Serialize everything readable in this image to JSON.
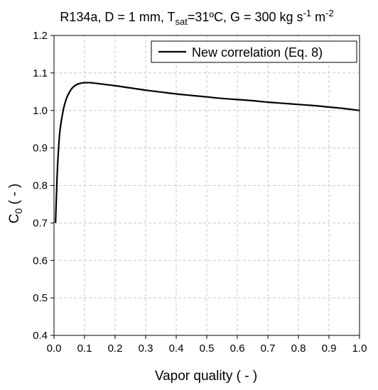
{
  "chart_data": {
    "type": "line",
    "title": {
      "prefix": "R134a, D = 1 mm, T",
      "sub": "sat",
      "middle": "=31ºC, G = 300 kg s",
      "sup1": "-1",
      "between": " m",
      "sup2": "-2"
    },
    "xlabel": "Vapor quality ( - )",
    "ylabel": {
      "main": "C",
      "sub": "0",
      "rest": " ( - )"
    },
    "xlim": [
      0,
      1
    ],
    "ylim": [
      0.4,
      1.2
    ],
    "xticks": [
      "0.0",
      "0.1",
      "0.2",
      "0.3",
      "0.4",
      "0.5",
      "0.6",
      "0.7",
      "0.8",
      "0.9",
      "1.0"
    ],
    "yticks": [
      "0.4",
      "0.5",
      "0.6",
      "0.7",
      "0.8",
      "0.9",
      "1.0",
      "1.1",
      "1.2"
    ],
    "grid": true,
    "legend_position": "top-right",
    "series": [
      {
        "name": "New correlation (Eq. 8)",
        "color": "#000000",
        "x": [
          0.005,
          0.01,
          0.015,
          0.02,
          0.03,
          0.04,
          0.05,
          0.06,
          0.07,
          0.08,
          0.09,
          0.1,
          0.11,
          0.12,
          0.13,
          0.14,
          0.15,
          0.17,
          0.2,
          0.25,
          0.3,
          0.35,
          0.4,
          0.45,
          0.5,
          0.55,
          0.6,
          0.65,
          0.7,
          0.75,
          0.8,
          0.85,
          0.9,
          0.95,
          1.0
        ],
        "y": [
          0.7,
          0.82,
          0.9,
          0.95,
          1.0,
          1.03,
          1.048,
          1.06,
          1.067,
          1.071,
          1.073,
          1.074,
          1.074,
          1.074,
          1.073,
          1.072,
          1.071,
          1.069,
          1.066,
          1.06,
          1.054,
          1.049,
          1.044,
          1.04,
          1.036,
          1.032,
          1.029,
          1.026,
          1.022,
          1.019,
          1.016,
          1.013,
          1.009,
          1.005,
          1.0
        ]
      }
    ]
  }
}
